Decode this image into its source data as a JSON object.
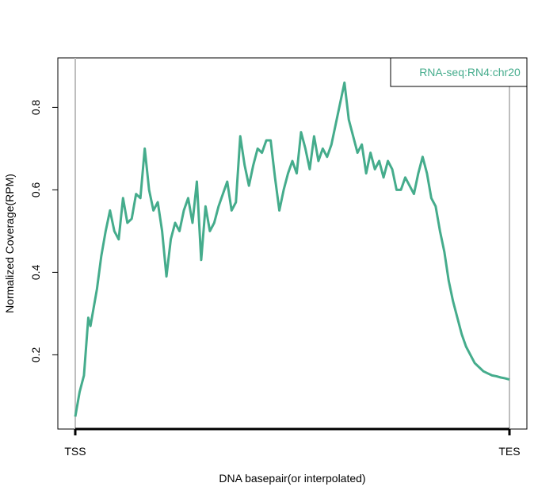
{
  "chart_data": {
    "type": "line",
    "title": "",
    "xlabel": "DNA basepair(or interpolated)",
    "ylabel": "Normalized Coverage(RPM)",
    "x_ticks": [
      "TSS",
      "TES"
    ],
    "y_ticks": [
      "0.2",
      "0.4",
      "0.6",
      "0.8"
    ],
    "y_tick_values": [
      0.2,
      0.4,
      0.6,
      0.8
    ],
    "xlim": [
      0,
      1
    ],
    "ylim": [
      0.02,
      0.92
    ],
    "grid": false,
    "legend_position": "top-right",
    "series": [
      {
        "name": "RNA-seq:RN4:chr20",
        "color": "#45AC8C",
        "x": [
          0.0,
          0.01,
          0.02,
          0.03,
          0.035,
          0.04,
          0.05,
          0.06,
          0.07,
          0.08,
          0.09,
          0.1,
          0.11,
          0.12,
          0.13,
          0.14,
          0.15,
          0.16,
          0.17,
          0.18,
          0.19,
          0.2,
          0.21,
          0.22,
          0.23,
          0.24,
          0.25,
          0.26,
          0.27,
          0.28,
          0.29,
          0.3,
          0.31,
          0.32,
          0.33,
          0.34,
          0.35,
          0.36,
          0.37,
          0.38,
          0.39,
          0.4,
          0.41,
          0.42,
          0.43,
          0.44,
          0.45,
          0.46,
          0.47,
          0.48,
          0.49,
          0.5,
          0.51,
          0.52,
          0.53,
          0.54,
          0.55,
          0.56,
          0.57,
          0.58,
          0.59,
          0.6,
          0.61,
          0.62,
          0.63,
          0.64,
          0.65,
          0.66,
          0.67,
          0.68,
          0.69,
          0.7,
          0.71,
          0.72,
          0.73,
          0.74,
          0.75,
          0.76,
          0.77,
          0.78,
          0.79,
          0.8,
          0.81,
          0.82,
          0.83,
          0.84,
          0.85,
          0.86,
          0.87,
          0.88,
          0.89,
          0.9,
          0.91,
          0.92,
          0.93,
          0.94,
          0.95,
          0.96,
          0.97,
          0.98,
          0.99,
          1.0
        ],
        "y": [
          0.05,
          0.11,
          0.15,
          0.29,
          0.27,
          0.3,
          0.36,
          0.44,
          0.5,
          0.55,
          0.5,
          0.48,
          0.58,
          0.52,
          0.53,
          0.59,
          0.58,
          0.7,
          0.6,
          0.55,
          0.57,
          0.5,
          0.39,
          0.48,
          0.52,
          0.5,
          0.55,
          0.58,
          0.52,
          0.62,
          0.43,
          0.56,
          0.5,
          0.52,
          0.56,
          0.59,
          0.62,
          0.55,
          0.57,
          0.73,
          0.66,
          0.61,
          0.66,
          0.7,
          0.69,
          0.72,
          0.72,
          0.63,
          0.55,
          0.6,
          0.64,
          0.67,
          0.64,
          0.74,
          0.7,
          0.65,
          0.73,
          0.67,
          0.7,
          0.68,
          0.71,
          0.76,
          0.81,
          0.86,
          0.77,
          0.73,
          0.69,
          0.71,
          0.64,
          0.69,
          0.65,
          0.67,
          0.63,
          0.67,
          0.65,
          0.6,
          0.6,
          0.63,
          0.61,
          0.59,
          0.64,
          0.68,
          0.64,
          0.58,
          0.56,
          0.5,
          0.45,
          0.38,
          0.33,
          0.29,
          0.25,
          0.22,
          0.2,
          0.18,
          0.17,
          0.16,
          0.155,
          0.15,
          0.148,
          0.145,
          0.143,
          0.14
        ]
      }
    ]
  }
}
